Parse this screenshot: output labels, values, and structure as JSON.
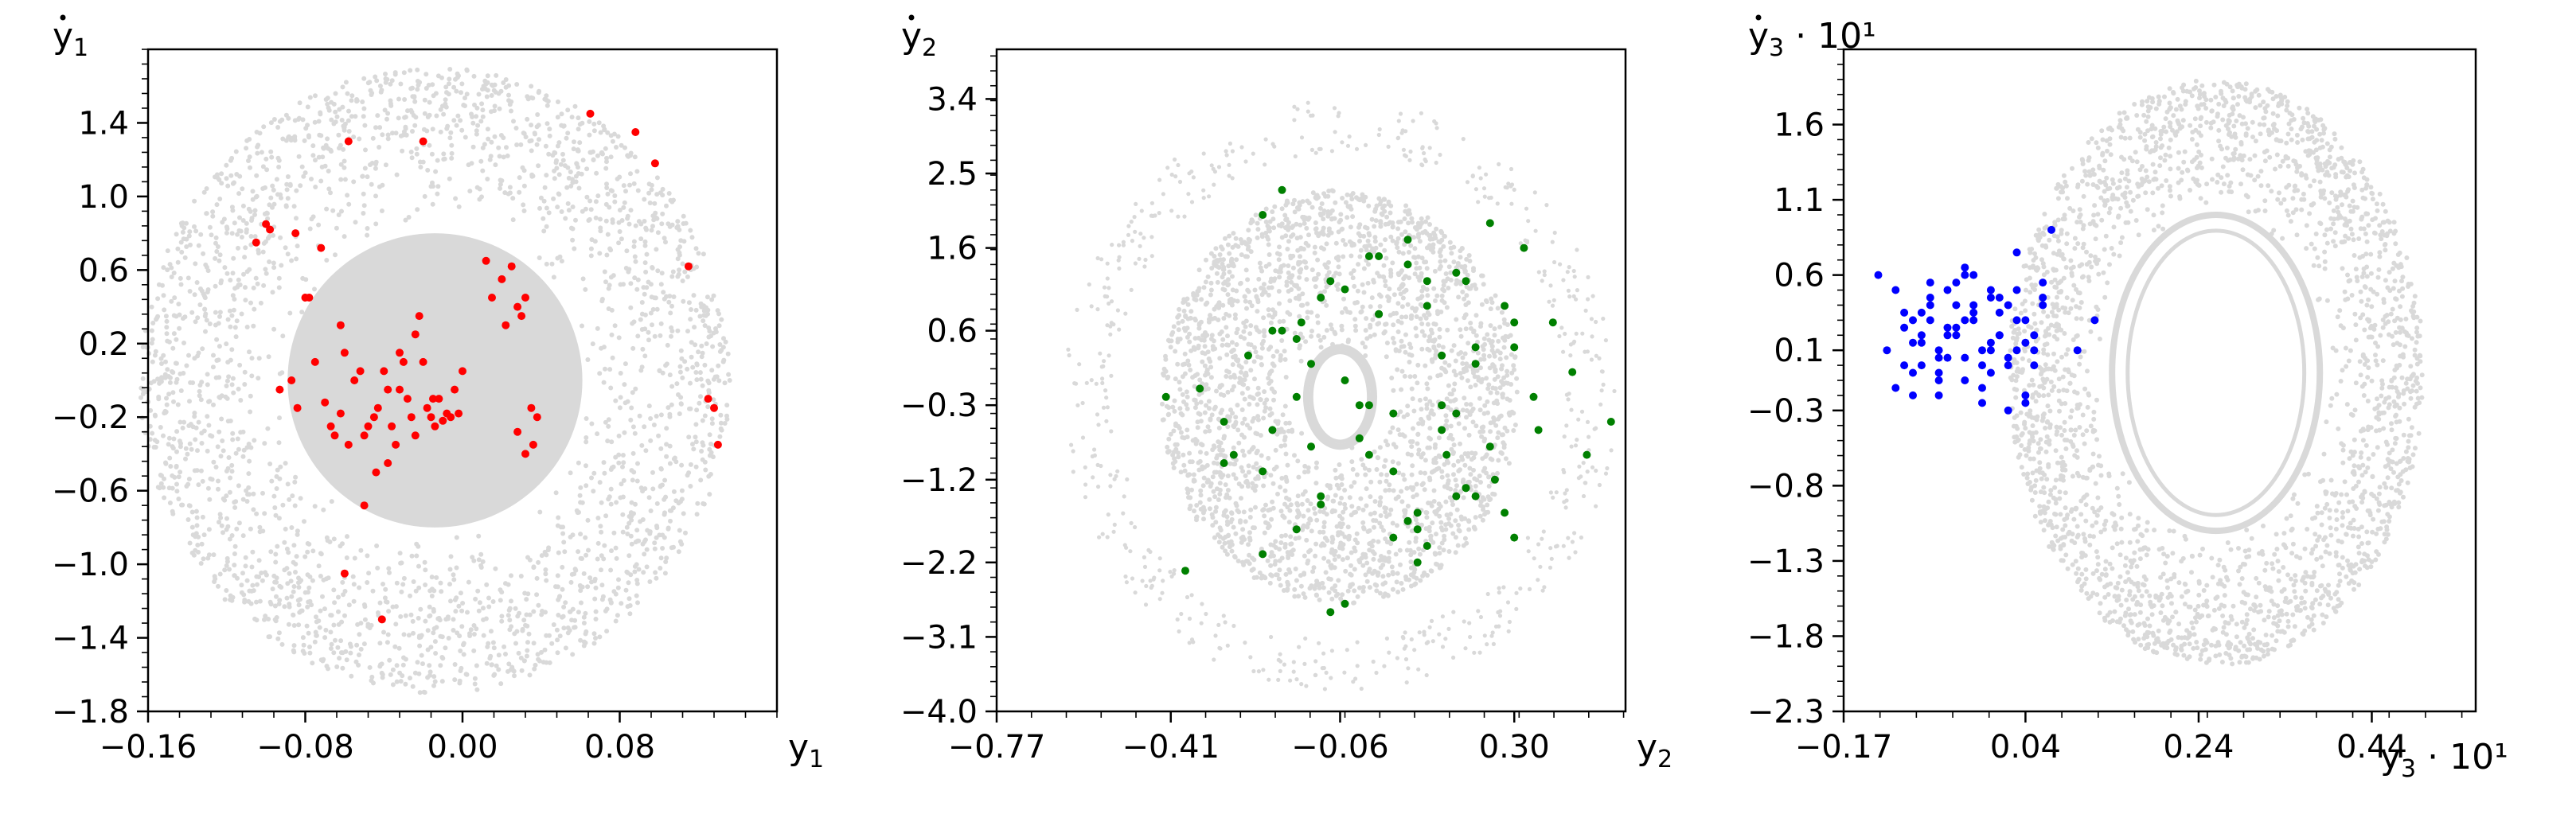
{
  "chart_data": [
    {
      "type": "scatter",
      "xlabel": "y",
      "xlabel_sub": "1",
      "xlabel_suffix": "",
      "ylabel": "y",
      "ylabel_sub": "1",
      "ylabel_dot": true,
      "ylabel_suffix": "",
      "xlim": [
        -0.16,
        0.16
      ],
      "ylim": [
        -1.8,
        1.8
      ],
      "xticks": [
        -0.16,
        -0.08,
        0.0,
        0.08
      ],
      "xtick_labels": [
        "−0.16",
        "−0.08",
        "0.00",
        "0.08"
      ],
      "yticks": [
        -1.8,
        -1.4,
        -1.0,
        -0.6,
        -0.2,
        0.2,
        0.6,
        1.0,
        1.4
      ],
      "ytick_labels": [
        "−1.8",
        "−1.4",
        "−1.0",
        "−0.6",
        "−0.2",
        "0.2",
        "0.6",
        "1.0",
        "1.4"
      ],
      "grid": false,
      "series": [
        {
          "color": "#d9d9d9",
          "role": "background trajectory",
          "shape": {
            "type": "annulus",
            "cx": -0.014,
            "cy": 0.0,
            "rx_outer": 0.15,
            "ry_outer": 1.7,
            "rx_inner": 0.075,
            "ry_inner": 0.85,
            "rx_fill": 0.075,
            "ry_fill": 0.8
          }
        },
        {
          "color": "#ff0000",
          "role": "highlighted points",
          "x": [
            -0.105,
            -0.1,
            -0.098,
            -0.085,
            -0.072,
            -0.058,
            -0.02,
            0.065,
            0.088,
            0.098,
            0.115,
            0.125,
            0.128,
            0.13,
            -0.093,
            -0.087,
            -0.084,
            -0.08,
            -0.078,
            -0.075,
            -0.07,
            -0.067,
            -0.065,
            -0.062,
            -0.06,
            -0.058,
            -0.055,
            -0.052,
            -0.05,
            -0.048,
            -0.045,
            -0.043,
            -0.04,
            -0.038,
            -0.036,
            -0.034,
            -0.032,
            -0.03,
            -0.028,
            -0.026,
            -0.024,
            -0.022,
            -0.02,
            -0.018,
            -0.016,
            -0.014,
            -0.012,
            -0.01,
            -0.008,
            -0.006,
            -0.004,
            -0.002,
            0.0,
            0.012,
            0.015,
            0.02,
            0.022,
            0.025,
            0.028,
            0.03,
            0.032,
            0.035,
            0.038,
            0.028,
            0.032,
            0.036,
            -0.044,
            -0.05,
            -0.038,
            -0.06,
            -0.032,
            -0.062,
            -0.041,
            -0.015,
            -0.024
          ],
          "y": [
            0.75,
            0.85,
            0.82,
            0.8,
            0.72,
            1.3,
            1.3,
            1.45,
            1.35,
            1.18,
            0.62,
            -0.1,
            -0.15,
            -0.35,
            -0.05,
            0.0,
            -0.15,
            0.45,
            0.45,
            0.1,
            -0.12,
            -0.25,
            -0.3,
            0.3,
            0.15,
            -0.35,
            0.0,
            0.05,
            -0.3,
            -0.25,
            -0.2,
            -0.15,
            0.05,
            -0.05,
            -0.25,
            -0.35,
            0.15,
            0.1,
            -0.1,
            -0.2,
            -0.3,
            0.35,
            0.1,
            -0.15,
            -0.2,
            -0.25,
            -0.1,
            -0.22,
            -0.18,
            -0.2,
            -0.05,
            -0.18,
            0.05,
            0.65,
            0.45,
            0.55,
            0.3,
            0.62,
            0.4,
            0.35,
            0.45,
            -0.15,
            -0.2,
            -0.28,
            -0.4,
            -0.35,
            -0.5,
            -0.68,
            -0.45,
            -1.05,
            -0.05,
            -0.18,
            -1.3,
            -0.1,
            0.25
          ]
        }
      ]
    },
    {
      "type": "scatter",
      "xlabel": "y",
      "xlabel_sub": "2",
      "xlabel_suffix": "",
      "ylabel": "y",
      "ylabel_sub": "2",
      "ylabel_dot": true,
      "ylabel_suffix": "",
      "xlim": [
        -0.77,
        0.53
      ],
      "ylim": [
        -4.0,
        4.0
      ],
      "xticks": [
        -0.77,
        -0.41,
        -0.06,
        0.3
      ],
      "xtick_labels": [
        "−0.77",
        "−0.41",
        "−0.06",
        "0.30"
      ],
      "yticks": [
        -4.0,
        -3.1,
        -2.2,
        -1.2,
        -0.3,
        0.6,
        1.6,
        2.5,
        3.4
      ],
      "ytick_labels": [
        "−4.0",
        "−3.1",
        "−2.2",
        "−1.2",
        "−0.3",
        "0.6",
        "1.6",
        "2.5",
        "3.4"
      ],
      "grid": false,
      "series": [
        {
          "color": "#d9d9d9",
          "role": "background trajectory",
          "shape": {
            "type": "annulus",
            "cx": -0.06,
            "cy": -0.2,
            "rx_outer": 0.37,
            "ry_outer": 2.5,
            "rx_inner": 0.07,
            "ry_inner": 0.6,
            "rx_fill": 0.0,
            "ry_fill": 0.0,
            "halo_rx": 0.57,
            "halo_ry": 3.6
          }
        },
        {
          "color": "#008000",
          "role": "highlighted points",
          "x": [
            -0.42,
            -0.38,
            -0.35,
            -0.3,
            -0.22,
            -0.18,
            -0.15,
            -0.12,
            -0.1,
            -0.08,
            -0.05,
            -0.02,
            0.0,
            0.02,
            0.05,
            0.08,
            0.1,
            0.12,
            0.15,
            0.18,
            0.2,
            0.22,
            0.25,
            0.28,
            0.3,
            0.32,
            0.35,
            0.38,
            0.42,
            0.45,
            0.5,
            -0.3,
            -0.25,
            -0.22,
            -0.2,
            -0.15,
            -0.1,
            -0.05,
            0.0,
            0.02,
            0.05,
            0.08,
            0.1,
            0.12,
            0.15,
            0.18,
            0.2,
            0.22,
            0.25,
            0.28,
            0.3,
            -0.28,
            -0.22,
            -0.18,
            -0.15,
            -0.12,
            -0.08,
            -0.05,
            -0.02,
            0.02,
            0.05,
            0.08,
            0.12,
            0.15,
            0.18,
            0.22,
            0.26,
            0.3,
            0.34,
            -0.2,
            -0.1,
            0.0,
            0.1,
            0.2,
            -0.14,
            0.16
          ],
          "y": [
            -0.2,
            -2.3,
            -0.1,
            -0.5,
            2.0,
            2.3,
            0.5,
            -0.8,
            -1.5,
            1.2,
            -2.7,
            -0.3,
            1.5,
            0.8,
            -1.9,
            1.7,
            -2.2,
            0.9,
            -0.6,
            1.3,
            -1.3,
            0.2,
            1.9,
            -1.6,
            0.4,
            1.6,
            -0.6,
            0.7,
            0.1,
            -0.9,
            -0.5,
            -1.0,
            0.3,
            -1.1,
            0.6,
            -1.8,
            1.0,
            0.0,
            -0.9,
            0.8,
            -0.4,
            1.4,
            -1.6,
            -2.0,
            0.3,
            -0.4,
            1.2,
            -1.4,
            -0.8,
            0.9,
            -1.9,
            -0.9,
            -2.1,
            0.6,
            -0.2,
            0.2,
            -2.8,
            1.1,
            -0.7,
            1.5,
            -1.1,
            -1.7,
            1.2,
            -0.3,
            -1.4,
            0.4,
            -1.2,
            0.7,
            -0.2,
            -0.6,
            -1.4,
            -0.3,
            -1.8,
            -1.3,
            0.7,
            -0.9
          ]
        }
      ]
    },
    {
      "type": "scatter",
      "xlabel": "y",
      "xlabel_sub": "3",
      "xlabel_suffix": " · 10¹",
      "ylabel": "y",
      "ylabel_sub": "3",
      "ylabel_dot": true,
      "ylabel_suffix": " · 10¹",
      "xlim": [
        -0.17,
        0.56
      ],
      "ylim": [
        -2.3,
        2.1
      ],
      "xticks": [
        -0.17,
        0.04,
        0.24,
        0.44
      ],
      "xtick_labels": [
        "−0.17",
        "0.04",
        "0.24",
        "0.44"
      ],
      "yticks": [
        -2.3,
        -1.8,
        -1.3,
        -0.8,
        -0.3,
        0.1,
        0.6,
        1.1,
        1.6
      ],
      "ytick_labels": [
        "−2.3",
        "−1.8",
        "−1.3",
        "−0.8",
        "−0.3",
        "0.1",
        "0.6",
        "1.1",
        "1.6"
      ],
      "grid": false,
      "series": [
        {
          "color": "#d9d9d9",
          "role": "background trajectory",
          "shape": {
            "type": "annulus",
            "cx": 0.26,
            "cy": -0.05,
            "rx_outer": 0.24,
            "ry_outer": 1.95,
            "rx_inner": 0.12,
            "ry_inner": 1.05,
            "rx_fill": 0.0,
            "ry_fill": 0.0
          }
        },
        {
          "color": "#0000ff",
          "role": "highlighted points",
          "x": [
            -0.13,
            -0.12,
            -0.11,
            -0.1,
            -0.09,
            -0.08,
            -0.07,
            -0.06,
            -0.05,
            -0.04,
            -0.03,
            -0.02,
            -0.01,
            0.0,
            0.01,
            0.02,
            0.03,
            0.04,
            0.05,
            0.06,
            0.07,
            -0.11,
            -0.1,
            -0.09,
            -0.08,
            -0.07,
            -0.06,
            -0.05,
            -0.04,
            -0.03,
            -0.02,
            -0.01,
            0.0,
            0.01,
            0.02,
            0.03,
            0.04,
            0.05,
            0.06,
            -0.1,
            -0.09,
            -0.08,
            -0.07,
            -0.06,
            -0.05,
            -0.04,
            -0.03,
            -0.02,
            -0.01,
            0.0,
            0.01,
            0.02,
            0.03,
            0.04,
            -0.09,
            -0.07,
            -0.05,
            -0.03,
            -0.01,
            0.01,
            0.03,
            0.05,
            -0.08,
            -0.06,
            -0.04,
            -0.02,
            0.0,
            0.02,
            0.04,
            -0.06,
            -0.03,
            0.0,
            0.06,
            0.1,
            0.12
          ],
          "y": [
            0.6,
            0.1,
            0.5,
            0.0,
            0.3,
            0.2,
            0.4,
            0.1,
            0.5,
            0.2,
            0.6,
            0.3,
            0.0,
            0.5,
            0.2,
            0.4,
            0.1,
            0.3,
            0.2,
            0.45,
            0.9,
            -0.15,
            0.35,
            -0.05,
            0.15,
            0.45,
            -0.1,
            0.25,
            0.55,
            0.05,
            0.35,
            -0.15,
            0.15,
            0.45,
            0.0,
            0.3,
            -0.2,
            0.1,
            0.4,
            0.25,
            -0.2,
            0.0,
            0.3,
            -0.05,
            0.2,
            0.4,
            -0.1,
            0.6,
            0.1,
            -0.05,
            0.35,
            0.05,
            0.75,
            -0.25,
            0.15,
            0.55,
            0.05,
            0.3,
            -0.25,
            0.2,
            0.5,
            0.0,
            0.35,
            -0.2,
            0.25,
            0.4,
            0.1,
            -0.3,
            0.15,
            0.05,
            0.65,
            0.45,
            0.55,
            0.1,
            0.3
          ]
        }
      ]
    }
  ]
}
